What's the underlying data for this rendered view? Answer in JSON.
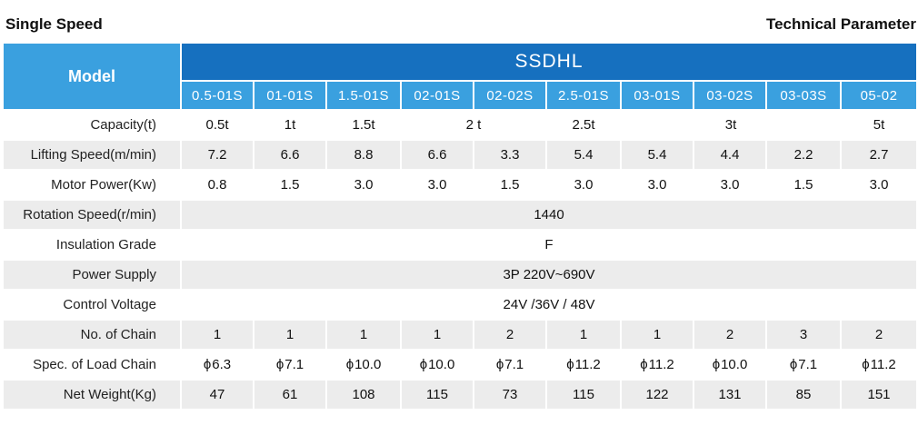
{
  "header": {
    "left_title": "Single Speed",
    "right_title": "Technical Parameter"
  },
  "table": {
    "model_label": "Model",
    "series_name": "SSDHL",
    "model_codes": [
      "0.5-01S",
      "01-01S",
      "1.5-01S",
      "02-01S",
      "02-02S",
      "2.5-01S",
      "03-01S",
      "03-02S",
      "03-03S",
      "05-02"
    ],
    "rows": {
      "capacity": {
        "label": "Capacity(t)",
        "values": [
          "0.5t",
          "1t",
          "1.5t",
          "2 t",
          "2.5t",
          "3t",
          "5t"
        ]
      },
      "lifting_speed": {
        "label": "Lifting Speed(m/min)",
        "values": [
          "7.2",
          "6.6",
          "8.8",
          "6.6",
          "3.3",
          "5.4",
          "5.4",
          "4.4",
          "2.2",
          "2.7"
        ]
      },
      "motor_power": {
        "label": "Motor Power(Kw)",
        "values": [
          "0.8",
          "1.5",
          "3.0",
          "3.0",
          "1.5",
          "3.0",
          "3.0",
          "3.0",
          "1.5",
          "3.0"
        ]
      },
      "rotation_speed": {
        "label": "Rotation Speed(r/min)",
        "value": "1440"
      },
      "insulation_grade": {
        "label": "Insulation Grade",
        "value": "F"
      },
      "power_supply": {
        "label": "Power Supply",
        "value": "3P 220V~690V"
      },
      "control_voltage": {
        "label": "Control Voltage",
        "value": "24V /36V / 48V"
      },
      "no_of_chain": {
        "label": "No. of Chain",
        "values": [
          "1",
          "1",
          "1",
          "1",
          "2",
          "1",
          "1",
          "2",
          "3",
          "2"
        ]
      },
      "load_chain": {
        "label": "Spec. of Load Chain",
        "symbol": "ϕ",
        "values": [
          "6.3",
          "7.1",
          "10.0",
          "10.0",
          "7.1",
          "11.2",
          "11.2",
          "10.0",
          "7.1",
          "11.2"
        ]
      },
      "net_weight": {
        "label": "Net Weight(Kg)",
        "values": [
          "47",
          "61",
          "108",
          "115",
          "73",
          "115",
          "122",
          "131",
          "85",
          "151"
        ]
      }
    }
  },
  "colors": {
    "header_dark_blue": "#1670bf",
    "header_light_blue": "#3aa0df",
    "row_stripe_gray": "#ececec"
  }
}
